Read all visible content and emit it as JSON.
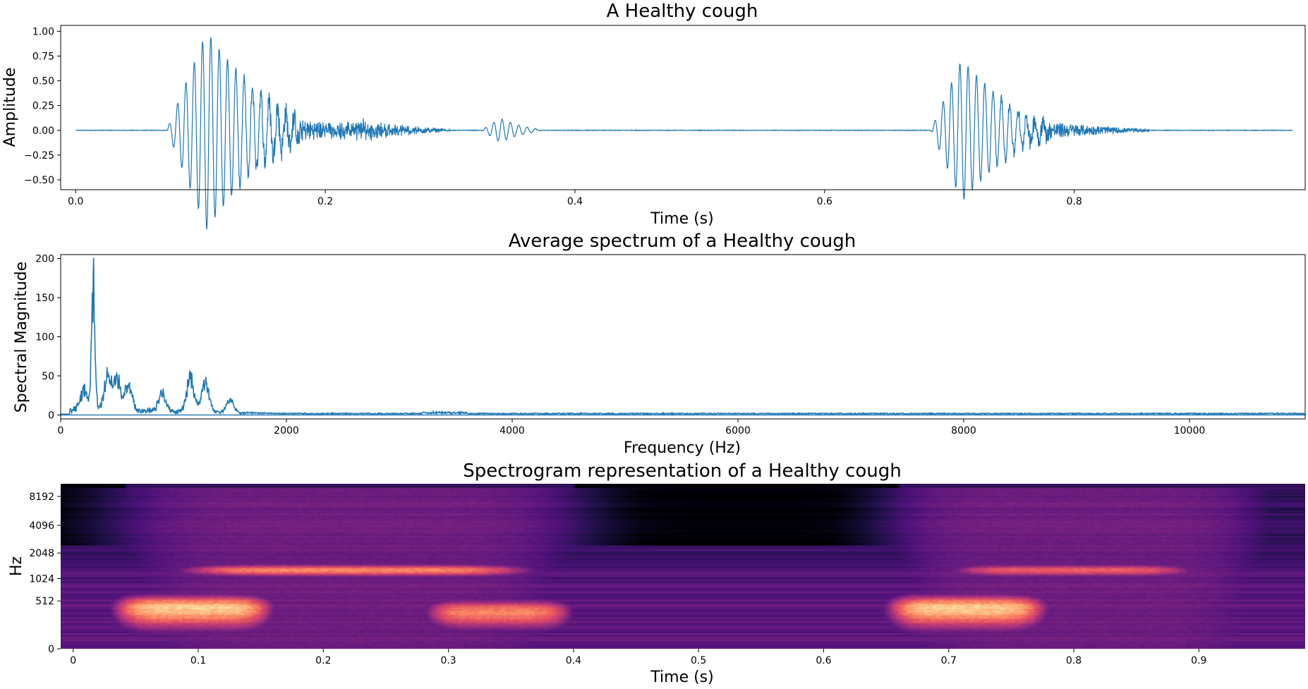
{
  "chart_data": [
    {
      "type": "line",
      "title": "A Healthy cough",
      "xlabel": "Time (s)",
      "ylabel": "Amplitude",
      "xlim": [
        -0.012,
        0.985
      ],
      "ylim": [
        -0.6,
        1.06
      ],
      "xticks": [
        0.0,
        0.2,
        0.4,
        0.6,
        0.8
      ],
      "xtick_labels": [
        "0.0",
        "0.2",
        "0.4",
        "0.6",
        "0.8"
      ],
      "yticks": [
        1.0,
        0.75,
        0.5,
        0.25,
        0.0,
        -0.25,
        -0.5
      ],
      "ytick_labels": [
        "1.00",
        "0.75",
        "0.50",
        "0.25",
        "0.00",
        "−0.25",
        "−0.50"
      ],
      "color": "#1f77b4",
      "events": [
        {
          "start": 0.073,
          "peak": 0.105,
          "end": 0.18,
          "amplitude": 1.0,
          "freq_hz": 150
        },
        {
          "start": 0.12,
          "peak": 0.16,
          "end": 0.3,
          "amplitude": 0.14,
          "freq_hz": 400
        },
        {
          "start": 0.2,
          "peak": 0.23,
          "end": 0.3,
          "amplitude": 0.08,
          "freq_hz": 400
        },
        {
          "start": 0.325,
          "peak": 0.34,
          "end": 0.37,
          "amplitude": 0.12,
          "freq_hz": 150
        },
        {
          "start": 0.685,
          "peak": 0.71,
          "end": 0.78,
          "amplitude": 0.72,
          "freq_hz": 150
        },
        {
          "start": 0.72,
          "peak": 0.77,
          "end": 0.86,
          "amplitude": 0.1,
          "freq_hz": 400
        }
      ],
      "x_range": [
        0.0,
        0.975
      ]
    },
    {
      "type": "line",
      "title": "Average spectrum of a Healthy cough",
      "xlabel": "Frequency (Hz)",
      "ylabel": "Spectral Magnitude",
      "xlim": [
        0,
        11025
      ],
      "ylim": [
        -5,
        205
      ],
      "xticks": [
        0,
        2000,
        4000,
        6000,
        8000,
        10000
      ],
      "xtick_labels": [
        "0",
        "2000",
        "4000",
        "6000",
        "8000",
        "10000"
      ],
      "yticks": [
        0,
        50,
        100,
        150,
        200
      ],
      "ytick_labels": [
        "0",
        "50",
        "100",
        "150",
        "200"
      ],
      "color": "#1f77b4",
      "peaks": [
        {
          "hz": 210,
          "value": 32
        },
        {
          "hz": 290,
          "value": 195
        },
        {
          "hz": 420,
          "value": 60
        },
        {
          "hz": 500,
          "value": 50
        },
        {
          "hz": 600,
          "value": 40
        },
        {
          "hz": 900,
          "value": 30
        },
        {
          "hz": 1150,
          "value": 55
        },
        {
          "hz": 1280,
          "value": 48
        },
        {
          "hz": 1500,
          "value": 20
        }
      ]
    },
    {
      "type": "heatmap",
      "title": "Spectrogram representation of a Healthy cough",
      "xlabel": "Time (s)",
      "ylabel": "Hz",
      "xlim": [
        -0.01,
        0.985
      ],
      "xticks": [
        0,
        0.1,
        0.2,
        0.3,
        0.4,
        0.5,
        0.6,
        0.7,
        0.8,
        0.9
      ],
      "xtick_labels": [
        "0",
        "0.1",
        "0.2",
        "0.3",
        "0.4",
        "0.5",
        "0.6",
        "0.7",
        "0.8",
        "0.9"
      ],
      "y_scale": "symlog base 2",
      "yticks": [
        0,
        512,
        1024,
        2048,
        4096,
        8192
      ],
      "ytick_labels": [
        "0",
        "512",
        "1024",
        "2048",
        "4096",
        "8192"
      ],
      "colormap": "magma",
      "energy_regions": [
        {
          "t_start": 0.04,
          "t_end": 0.4,
          "f_low": 0,
          "f_high": 10000,
          "level": 0.35
        },
        {
          "t_start": 0.05,
          "t_end": 0.14,
          "f_low": 150,
          "f_high": 600,
          "level": 0.95
        },
        {
          "t_start": 0.1,
          "t_end": 0.35,
          "f_low": 1100,
          "f_high": 1500,
          "level": 0.8
        },
        {
          "t_start": 0.3,
          "t_end": 0.38,
          "f_low": 150,
          "f_high": 500,
          "level": 0.8
        },
        {
          "t_start": 0.66,
          "t_end": 0.95,
          "f_low": 0,
          "f_high": 10000,
          "level": 0.35
        },
        {
          "t_start": 0.67,
          "t_end": 0.76,
          "f_low": 150,
          "f_high": 600,
          "level": 0.95
        },
        {
          "t_start": 0.72,
          "t_end": 0.88,
          "f_low": 1100,
          "f_high": 1500,
          "level": 0.7
        }
      ]
    }
  ]
}
